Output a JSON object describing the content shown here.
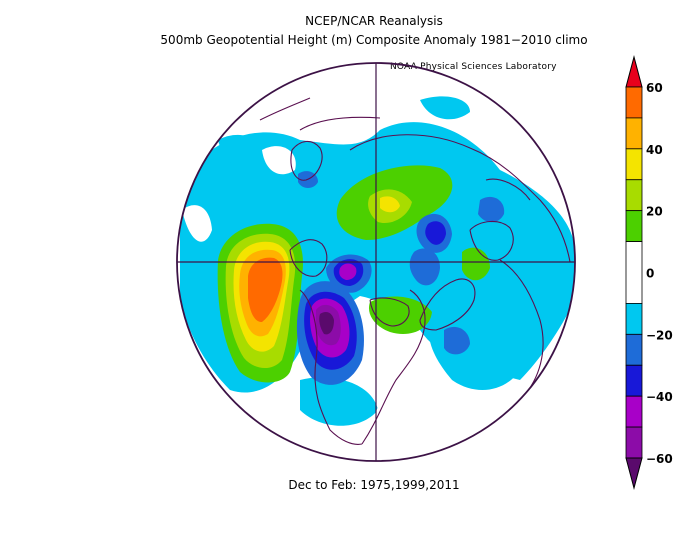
{
  "title_line1": "NCEP/NCAR Reanalysis",
  "title_line2": "500mb Geopotential Height (m) Composite Anomaly 1981−2010 climo",
  "lab_credit": "NOAA Physical Sciences Laboratory",
  "footer": "Dec to Feb: 1975,1999,2011",
  "colorbar": {
    "ticks": [
      "60",
      "40",
      "20",
      "0",
      "−20",
      "−40",
      "−60"
    ],
    "tick_values": [
      60,
      40,
      20,
      0,
      -20,
      -40,
      -60
    ],
    "bands": [
      {
        "from": 60,
        "to": 70,
        "color": "#e8001c"
      },
      {
        "from": 50,
        "to": 60,
        "color": "#ff6a00"
      },
      {
        "from": 40,
        "to": 50,
        "color": "#ffb200"
      },
      {
        "from": 30,
        "to": 40,
        "color": "#f4e400"
      },
      {
        "from": 20,
        "to": 30,
        "color": "#a8dc00"
      },
      {
        "from": 10,
        "to": 20,
        "color": "#4cd000"
      },
      {
        "from": -10,
        "to": 10,
        "color": "#ffffff"
      },
      {
        "from": -20,
        "to": -10,
        "color": "#00c8f0"
      },
      {
        "from": -30,
        "to": -20,
        "color": "#1e6cd8"
      },
      {
        "from": -40,
        "to": -30,
        "color": "#1818d8"
      },
      {
        "from": -50,
        "to": -40,
        "color": "#a800c8"
      },
      {
        "from": -60,
        "to": -50,
        "color": "#8c0ca8"
      },
      {
        "from": -70,
        "to": -60,
        "color": "#5a0a6c"
      }
    ]
  },
  "colors": {
    "land_outline": "#5a1050",
    "map_border": "#3c1246",
    "grid": "#3c1246"
  }
}
